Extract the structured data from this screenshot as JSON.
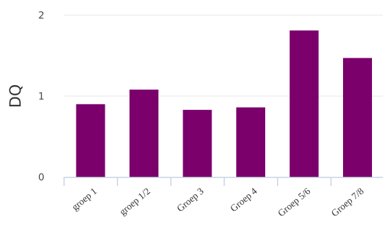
{
  "chart_data": {
    "type": "bar",
    "categories": [
      "groep 1",
      "groep 1/2",
      "Groep 3",
      "Groep 4",
      "Groep 5/6",
      "Groep 7/8"
    ],
    "values": [
      0.9,
      1.08,
      0.83,
      0.86,
      1.81,
      1.47
    ],
    "ylabel": "DQ",
    "ylim": [
      0,
      2
    ],
    "yticks": [
      "0",
      "1",
      "2"
    ],
    "grid": true,
    "colors": {
      "bar": "#7b006b",
      "grid": "#e6e6e6",
      "axis": "#c6d3e3"
    }
  }
}
